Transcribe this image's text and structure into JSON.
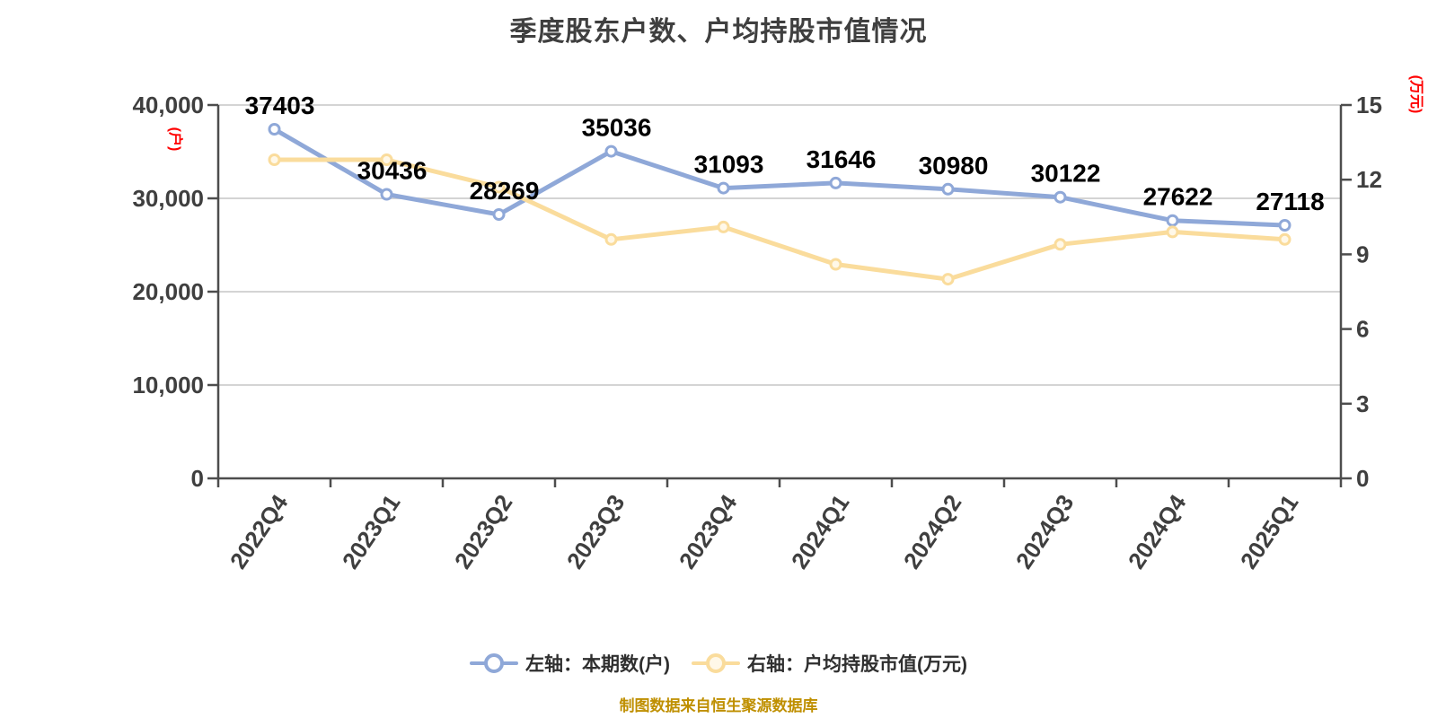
{
  "title": "季度股东户数、户均持股市值情况",
  "footer_note": "制图数据来自恒生聚源数据库",
  "legend": {
    "items": [
      {
        "label": "左轴：本期数(户)",
        "color": "#8FA8D8",
        "marker_fill": "#FFFFFF"
      },
      {
        "label": "右轴：户均持股市值(万元)",
        "color": "#FADC9C",
        "marker_fill": "#FFF8E8"
      }
    ]
  },
  "chart_data": {
    "type": "line",
    "title": "季度股东户数、户均持股市值情况",
    "categories": [
      "2022Q4",
      "2023Q1",
      "2023Q2",
      "2023Q3",
      "2023Q4",
      "2024Q1",
      "2024Q2",
      "2024Q3",
      "2024Q4",
      "2025Q1"
    ],
    "series": [
      {
        "name": "左轴：本期数(户)",
        "yaxis": "left",
        "color": "#8FA8D8",
        "marker_fill": "#FFFFFF",
        "values": [
          37403,
          30436,
          28269,
          35036,
          31093,
          31646,
          30980,
          30122,
          27622,
          27118
        ],
        "show_labels": true
      },
      {
        "name": "右轴：户均持股市值(万元)",
        "yaxis": "right",
        "color": "#FADC9C",
        "marker_fill": "#FFF8E8",
        "values": [
          12.8,
          12.8,
          11.7,
          9.6,
          10.1,
          8.6,
          8.0,
          9.4,
          9.9,
          9.6
        ],
        "show_labels": false
      }
    ],
    "left_axis": {
      "unit": "(户)",
      "min": 0,
      "max": 40000,
      "ticks": [
        0,
        10000,
        20000,
        30000,
        40000
      ],
      "tick_labels": [
        "0",
        "10,000",
        "20,000",
        "30,000",
        "40,000"
      ]
    },
    "right_axis": {
      "unit": "(万元)",
      "min": 0,
      "max": 15,
      "ticks": [
        0,
        3,
        6,
        9,
        12,
        15
      ],
      "tick_labels": [
        "0",
        "3",
        "6",
        "9",
        "12",
        "15"
      ]
    },
    "grid": true,
    "legend_position": "bottom",
    "x_label_rotation": -56
  },
  "colors": {
    "background": "#FFFFFF",
    "title_text": "#3F3F3F",
    "axis_line": "#4D4D4D",
    "grid_line": "#D4D4D4",
    "tick_text": "#3F3F3F",
    "data_label_text": "#000000",
    "axis_unit_text": "#FF0000",
    "legend_text": "#2F2F2F",
    "footer_text": "#BF8F00"
  }
}
